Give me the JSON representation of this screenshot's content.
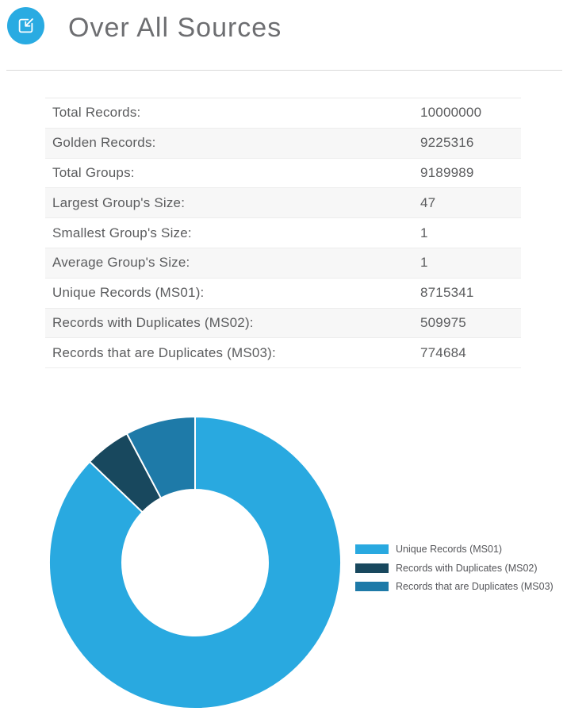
{
  "header": {
    "title": "Over All Sources",
    "icon": "import-arrow-icon"
  },
  "stats_table": {
    "rows": [
      {
        "label": "Total Records:",
        "value": "10000000"
      },
      {
        "label": "Golden Records:",
        "value": "9225316"
      },
      {
        "label": "Total Groups:",
        "value": "9189989"
      },
      {
        "label": "Largest Group's Size:",
        "value": "47"
      },
      {
        "label": "Smallest Group's Size:",
        "value": "1"
      },
      {
        "label": "Average Group's Size:",
        "value": "1"
      },
      {
        "label": "Unique Records (MS01):",
        "value": "8715341"
      },
      {
        "label": "Records with Duplicates (MS02):",
        "value": "509975"
      },
      {
        "label": "Records that are Duplicates (MS03):",
        "value": "774684"
      }
    ]
  },
  "chart_data": {
    "type": "pie",
    "subtype": "donut",
    "categories": [
      "Unique Records (MS01)",
      "Records with Duplicates (MS02)",
      "Records that are Duplicates (MS03)"
    ],
    "values": [
      8715341,
      509975,
      774684
    ],
    "percentages": [
      87.15,
      5.1,
      7.75
    ],
    "colors": [
      "#29A9E0",
      "#18485E",
      "#1E7AA8"
    ],
    "start_angle_deg": 0,
    "direction": "clockwise",
    "inner_radius_ratio": 0.5,
    "slice_gap_color": "#FFFFFF",
    "legend_position": "right",
    "title": ""
  },
  "colors": {
    "accent": "#29ABE2",
    "title_text": "#6D6E71",
    "table_text": "#5B5C5E",
    "row_stripe": "#F7F7F7",
    "divider": "#D9D9D9",
    "legend_text": "#55565A"
  }
}
